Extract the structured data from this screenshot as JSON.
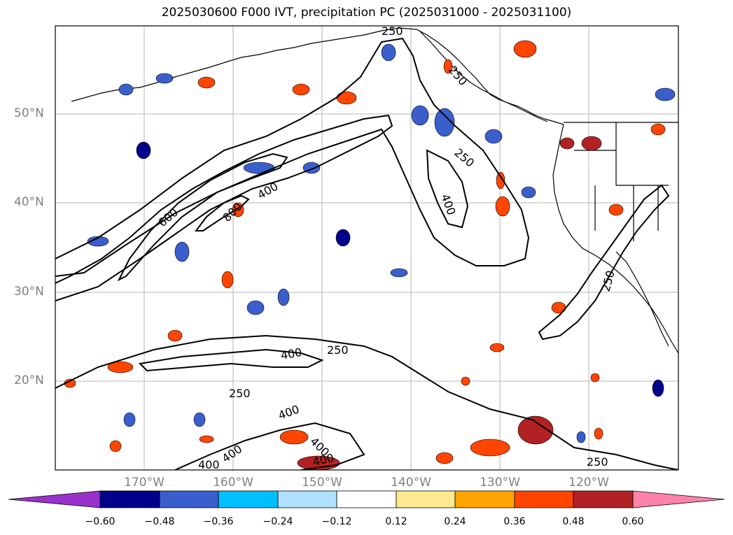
{
  "title": "2025030600 F000 IVT, precipitation PC (2025031000 - 2025031100)",
  "lat_labels": [
    "50°N",
    "40°N",
    "30°N",
    "20°N"
  ],
  "lon_labels": [
    "170°W",
    "160°W",
    "150°W",
    "140°W",
    "130°W",
    "120°W"
  ],
  "contour_labels": [
    "250",
    "250",
    "400",
    "600",
    "800",
    "400",
    "250",
    "400",
    "250",
    "400",
    "250",
    "250",
    "400",
    "400",
    "400",
    "400",
    "250"
  ],
  "colorbar": {
    "ticks": [
      "−0.60",
      "−0.48",
      "−0.36",
      "−0.24",
      "−0.12",
      "0.12",
      "0.24",
      "0.36",
      "0.48",
      "0.60"
    ],
    "colors": [
      "#9932cc",
      "#00008b",
      "#3a5fcd",
      "#00bfff",
      "#b0e2ff",
      "#ffffff",
      "#fde98f",
      "#ffa500",
      "#ff4500",
      "#b22222",
      "#ff82ab"
    ]
  },
  "colors": {
    "frame": "#000000",
    "grid": "#b4b4b4",
    "label_gray": "#808080"
  }
}
